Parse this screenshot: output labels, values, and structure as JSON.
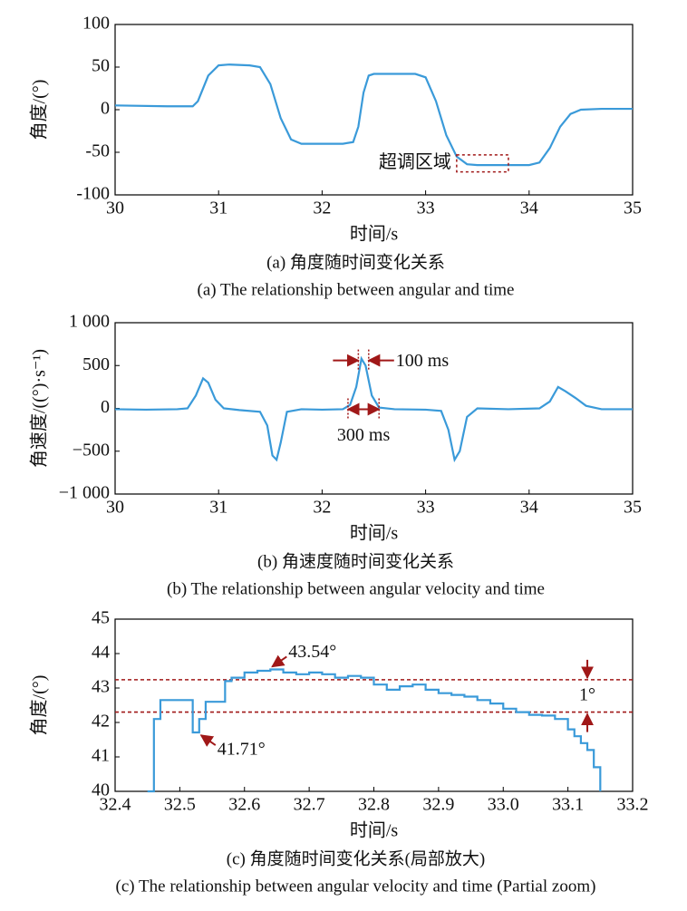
{
  "chart_data": [
    {
      "type": "line",
      "color": "#3a9ad9",
      "ylabel": "角度/(°)",
      "xlabel": "时间/s",
      "caption": "(a) 角度随时间变化关系",
      "caption_en": "(a) The relationship between angular and time",
      "xlim": [
        30,
        35
      ],
      "xticks": [
        30,
        31,
        32,
        33,
        34,
        35
      ],
      "ylim": [
        -100,
        100
      ],
      "yticks": [
        -100,
        -50,
        0,
        50,
        100
      ],
      "x": [
        30,
        30.5,
        30.75,
        30.8,
        30.9,
        31.0,
        31.1,
        31.3,
        31.4,
        31.5,
        31.6,
        31.7,
        31.8,
        32.0,
        32.2,
        32.3,
        32.35,
        32.4,
        32.45,
        32.5,
        32.7,
        32.9,
        33.0,
        33.1,
        33.2,
        33.3,
        33.4,
        33.5,
        33.8,
        34.0,
        34.1,
        34.2,
        34.3,
        34.4,
        34.5,
        34.7,
        35
      ],
      "values": [
        5,
        4,
        4,
        10,
        40,
        52,
        53,
        52,
        50,
        30,
        -10,
        -35,
        -40,
        -40,
        -40,
        -38,
        -20,
        20,
        40,
        42,
        42,
        42,
        38,
        10,
        -30,
        -55,
        -64,
        -65,
        -65,
        -65,
        -62,
        -45,
        -20,
        -5,
        0,
        1,
        1
      ],
      "annotations": [
        {
          "text": "超调区域",
          "box_x": [
            33.3,
            33.8
          ],
          "box_y": [
            -53,
            -73
          ]
        }
      ]
    },
    {
      "type": "line",
      "color": "#3a9ad9",
      "ylabel": "角速度/((°)·s⁻¹)",
      "xlabel": "时间/s",
      "caption": "(b) 角速度随时间变化关系",
      "caption_en": "(b) The relationship between angular velocity and time",
      "xlim": [
        30,
        35
      ],
      "xticks": [
        30,
        31,
        32,
        33,
        34,
        35
      ],
      "ylim": [
        -1000,
        1000
      ],
      "yticks": [
        {
          "value": -1000,
          "label": "−1 000"
        },
        {
          "value": -500,
          "label": "−500"
        },
        0,
        500,
        {
          "value": 1000,
          "label": "1 000"
        }
      ],
      "x": [
        30,
        30.3,
        30.6,
        30.7,
        30.78,
        30.85,
        30.9,
        30.97,
        31.05,
        31.2,
        31.4,
        31.47,
        31.52,
        31.56,
        31.6,
        31.66,
        31.8,
        32.0,
        32.2,
        32.27,
        32.33,
        32.38,
        32.42,
        32.48,
        32.55,
        32.7,
        33.0,
        33.15,
        33.22,
        33.28,
        33.33,
        33.4,
        33.5,
        33.8,
        34.1,
        34.2,
        34.28,
        34.35,
        34.45,
        34.55,
        34.7,
        35
      ],
      "values": [
        -10,
        -15,
        -10,
        0,
        150,
        350,
        300,
        100,
        0,
        -20,
        -40,
        -200,
        -550,
        -600,
        -400,
        -40,
        -10,
        -15,
        -10,
        40,
        250,
        580,
        500,
        150,
        10,
        -10,
        -15,
        -30,
        -250,
        -600,
        -500,
        -100,
        0,
        -10,
        0,
        80,
        250,
        200,
        120,
        30,
        -10,
        -10
      ],
      "annotations": [
        {
          "text": "100 ms",
          "span": [
            32.35,
            32.45
          ],
          "y": 560
        },
        {
          "text": "300 ms",
          "span": [
            32.25,
            32.55
          ],
          "y": -10
        }
      ]
    },
    {
      "type": "line",
      "step": "post",
      "color": "#3a9ad9",
      "ylabel": "角度/(°)",
      "xlabel": "时间/s",
      "caption": "(c) 角度随时间变化关系(局部放大)",
      "caption_en": "(c) The relationship between angular velocity and time (Partial zoom)",
      "xlim": [
        32.4,
        33.2
      ],
      "xticks": [
        32.4,
        32.5,
        32.6,
        32.7,
        32.8,
        32.9,
        {
          "value": 33,
          "label": "33.0"
        },
        33.1,
        33.2
      ],
      "ylim": [
        40,
        45
      ],
      "yticks": [
        40,
        41,
        42,
        43,
        44,
        45
      ],
      "x": [
        32.45,
        32.46,
        32.47,
        32.52,
        32.53,
        32.54,
        32.57,
        32.58,
        32.6,
        32.62,
        32.64,
        32.66,
        32.68,
        32.7,
        32.72,
        32.74,
        32.76,
        32.78,
        32.8,
        32.82,
        32.84,
        32.86,
        32.88,
        32.9,
        32.92,
        32.94,
        32.96,
        32.98,
        33.0,
        33.02,
        33.04,
        33.06,
        33.08,
        33.1,
        33.11,
        33.12,
        33.13,
        33.14,
        33.15
      ],
      "values": [
        40.0,
        42.1,
        42.65,
        41.71,
        42.1,
        42.6,
        43.2,
        43.3,
        43.45,
        43.5,
        43.54,
        43.45,
        43.4,
        43.45,
        43.4,
        43.3,
        43.35,
        43.3,
        43.1,
        42.95,
        43.05,
        43.1,
        42.95,
        42.85,
        42.8,
        42.75,
        42.65,
        42.55,
        42.4,
        42.3,
        42.22,
        42.2,
        42.1,
        41.8,
        41.6,
        41.4,
        41.2,
        40.7,
        40.0
      ],
      "hlines": [
        43.24,
        42.3
      ],
      "annotations": [
        {
          "text": "43.54°",
          "x": 32.64,
          "y": 43.54
        },
        {
          "text": "41.71°",
          "x": 32.53,
          "y": 41.71
        },
        {
          "text": "1°",
          "x": 33.13
        }
      ]
    }
  ]
}
